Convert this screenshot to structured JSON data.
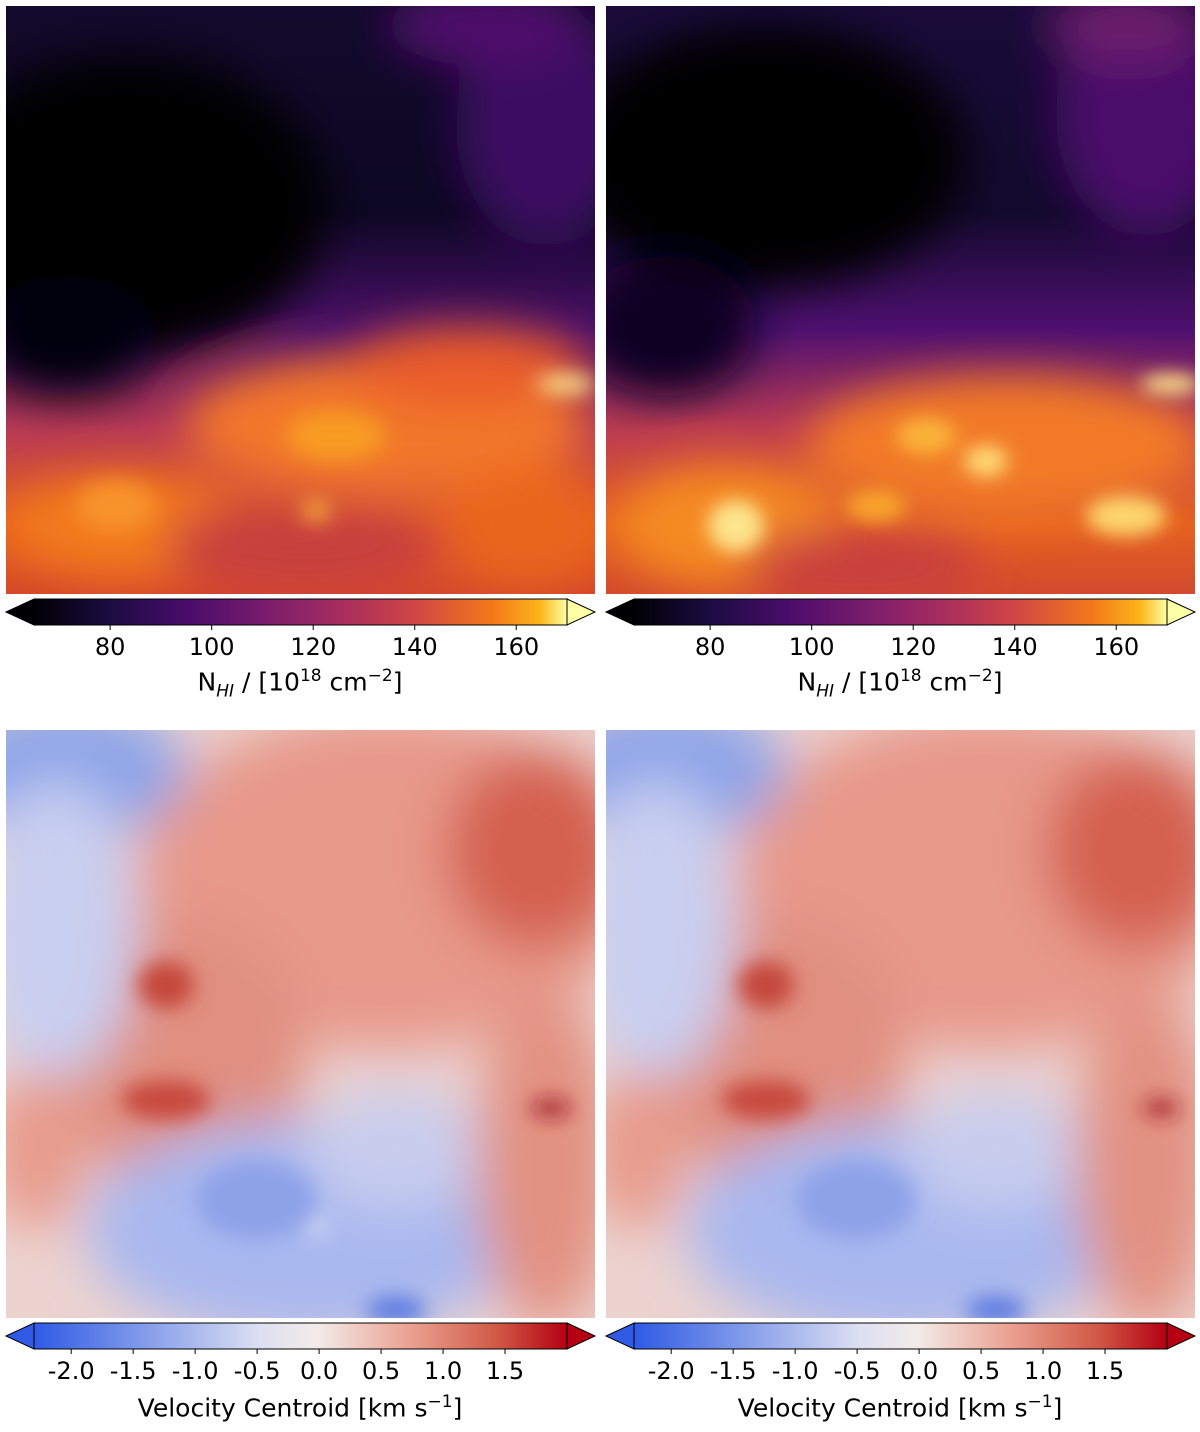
{
  "chart_data": [
    {
      "type": "heatmap",
      "panel": "top-left",
      "colormap": "inferno",
      "colorbar": {
        "vmin": 65,
        "vmax": 170,
        "extend": "both",
        "ticks": [
          80,
          100,
          120,
          140,
          160
        ],
        "tick_labels": [
          "80",
          "100",
          "120",
          "140",
          "160"
        ],
        "label": "N_HI / [10^18 cm^-2]",
        "label_parts": [
          "N",
          "HI",
          " / [10",
          "18",
          " cm",
          "−2",
          "]"
        ]
      },
      "field": "column-density"
    },
    {
      "type": "heatmap",
      "panel": "top-right",
      "colormap": "inferno",
      "colorbar": {
        "vmin": 65,
        "vmax": 170,
        "extend": "both",
        "ticks": [
          80,
          100,
          120,
          140,
          160
        ],
        "tick_labels": [
          "80",
          "100",
          "120",
          "140",
          "160"
        ],
        "label": "N_HI / [10^18 cm^-2]",
        "label_parts": [
          "N",
          "HI",
          " / [10",
          "18",
          " cm",
          "−2",
          "]"
        ]
      },
      "field": "column-density"
    },
    {
      "type": "heatmap",
      "panel": "bottom-left",
      "colormap": "coolwarm-diverging",
      "colorbar": {
        "vmin": -2.3,
        "vmax": 2.0,
        "extend": "both",
        "ticks": [
          -2.0,
          -1.5,
          -1.0,
          -0.5,
          0.0,
          0.5,
          1.0,
          1.5
        ],
        "tick_labels": [
          "-2.0",
          "-1.5",
          "-1.0",
          "-0.5",
          "0.0",
          "0.5",
          "1.0",
          "1.5"
        ],
        "label": "Velocity Centroid [km s^-1]",
        "label_parts": [
          "Velocity Centroid [km s",
          "−1",
          "]"
        ]
      },
      "field": "velocity-centroid"
    },
    {
      "type": "heatmap",
      "panel": "bottom-right",
      "colormap": "coolwarm-diverging",
      "colorbar": {
        "vmin": -2.3,
        "vmax": 2.0,
        "extend": "both",
        "ticks": [
          -2.0,
          -1.5,
          -1.0,
          -0.5,
          0.0,
          0.5,
          1.0,
          1.5
        ],
        "tick_labels": [
          "-2.0",
          "-1.5",
          "-1.0",
          "-0.5",
          "0.0",
          "0.5",
          "1.0",
          "1.5"
        ],
        "label": "Velocity Centroid [km s^-1]",
        "label_parts": [
          "Velocity Centroid [km s",
          "−1",
          "]"
        ]
      },
      "field": "velocity-centroid"
    }
  ]
}
